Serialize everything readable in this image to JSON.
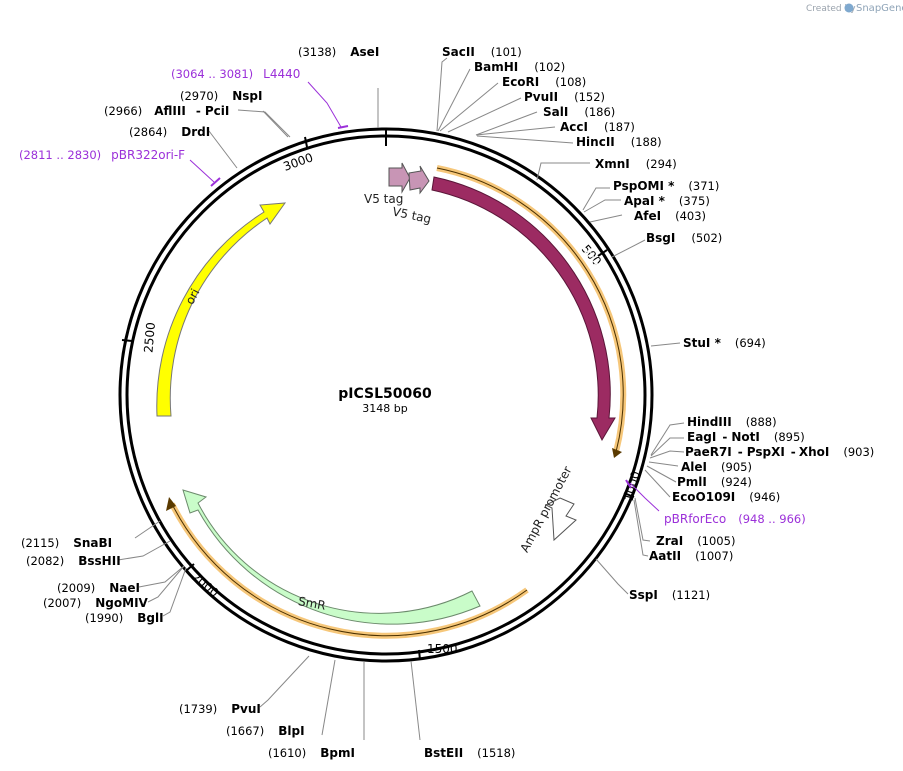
{
  "credit": {
    "prefix": "Created by",
    "brand": "SnapGene"
  },
  "plasmid": {
    "name": "pICSL50060",
    "size": "3148 bp"
  },
  "ticks": [
    "500",
    "1000",
    "1500",
    "2000",
    "2500",
    "3000"
  ],
  "features": {
    "miniturbo": "miniTurbo",
    "ori": "ori",
    "smr": "SmR",
    "ampr_promoter": "AmpR promoter",
    "v5_tag_1": "V5 tag",
    "v5_tag_2": "V5 tag"
  },
  "sites": [
    {
      "pos": "(3138)",
      "name": "AseI"
    },
    {
      "name": "SacII",
      "pos": "(101)"
    },
    {
      "name": "BamHI",
      "pos": "(102)"
    },
    {
      "name": "EcoRI",
      "pos": "(108)"
    },
    {
      "name": "PvuII",
      "pos": "(152)"
    },
    {
      "name": "SalI",
      "pos": "(186)"
    },
    {
      "name": "AccI",
      "pos": "(187)"
    },
    {
      "name": "HincII",
      "pos": "(188)"
    },
    {
      "name": "XmnI",
      "pos": "(294)"
    },
    {
      "name": "PspOMI *",
      "pos": "(371)"
    },
    {
      "name": "ApaI *",
      "pos": "(375)"
    },
    {
      "name": "AfeI",
      "pos": "(403)"
    },
    {
      "name": "BsgI",
      "pos": "(502)"
    },
    {
      "name": "StuI *",
      "pos": "(694)"
    },
    {
      "name": "HindIII",
      "pos": "(888)"
    },
    {
      "name": "EagI",
      "sep": "-",
      "name2": "NotI",
      "pos": "(895)"
    },
    {
      "name": "PaeR7I",
      "sep": "-",
      "name2": "PspXI",
      "sep2": "-",
      "name3": "XhoI",
      "pos": "(903)"
    },
    {
      "name": "AleI",
      "pos": "(905)"
    },
    {
      "name": "PmlI",
      "pos": "(924)"
    },
    {
      "name": "EcoO109I",
      "pos": "(946)"
    },
    {
      "name": "ZraI",
      "pos": "(1005)"
    },
    {
      "name": "AatII",
      "pos": "(1007)"
    },
    {
      "name": "SspI",
      "pos": "(1121)"
    },
    {
      "name": "BstEII",
      "pos": "(1518)"
    },
    {
      "pos": "(1610)",
      "name": "BpmI"
    },
    {
      "pos": "(1667)",
      "name": "BlpI"
    },
    {
      "pos": "(1739)",
      "name": "PvuI"
    },
    {
      "pos": "(1990)",
      "name": "BglI"
    },
    {
      "pos": "(2007)",
      "name": "NgoMIV"
    },
    {
      "pos": "(2009)",
      "name": "NaeI"
    },
    {
      "pos": "(2082)",
      "name": "BssHII"
    },
    {
      "pos": "(2115)",
      "name": "SnaBI"
    },
    {
      "pos": "(2864)",
      "name": "DrdI"
    },
    {
      "pos": "(2966)",
      "name": "AflIII",
      "sep": "-",
      "name2": "PciI"
    },
    {
      "pos": "(2970)",
      "name": "NspI"
    }
  ],
  "primers": [
    {
      "range": "(3064 .. 3081)",
      "name": "L4440"
    },
    {
      "range": "(2811 .. 2830)",
      "name": "pBR322ori-F"
    },
    {
      "name": "pBRforEco",
      "range": "(948 .. 966)"
    }
  ],
  "colors": {
    "miniturbo": "#9c2b62",
    "ori": "#ffff00",
    "smr": "#c9fcc9",
    "v5": "#c895b5",
    "orf_highlight": "#f6c77a",
    "primer": "#9b30d9"
  }
}
